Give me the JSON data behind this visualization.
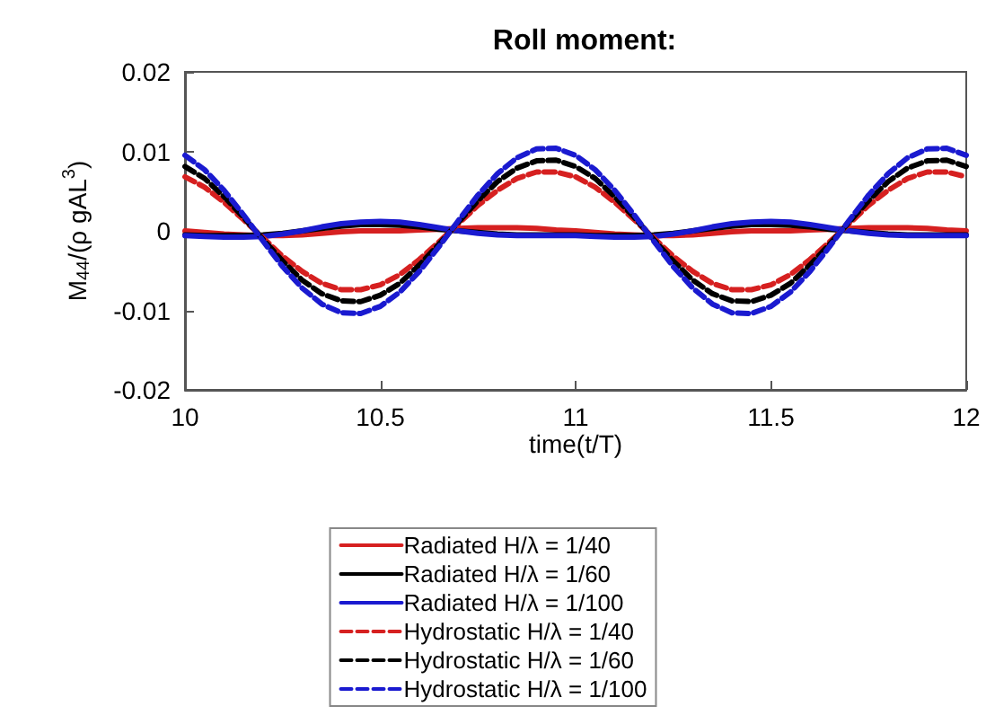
{
  "chart_data": {
    "type": "line",
    "title": "Roll moment:",
    "xlabel": "time(t/T)",
    "ylabel": "M$_{44}$/(ρ gAL$^{3}$)",
    "x": [
      10,
      10.05,
      10.1,
      10.15,
      10.2,
      10.25,
      10.3,
      10.35,
      10.4,
      10.45,
      10.5,
      10.55,
      10.6,
      10.65,
      10.7,
      10.75,
      10.8,
      10.85,
      10.9,
      10.95,
      11,
      11.05,
      11.1,
      11.15,
      11.2,
      11.25,
      11.3,
      11.35,
      11.4,
      11.45,
      11.5,
      11.55,
      11.6,
      11.65,
      11.7,
      11.75,
      11.8,
      11.85,
      11.9,
      11.95,
      12
    ],
    "xlim": [
      10,
      12
    ],
    "xticks": [
      10,
      10.5,
      11,
      11.5,
      12
    ],
    "ylim": [
      -0.02,
      0.02
    ],
    "yticks": [
      -0.02,
      -0.01,
      0,
      0.01,
      0.02
    ],
    "grid": false,
    "legend": "bottom",
    "marker": "none",
    "series": [
      {
        "name": "Radiated H/λ = 1/40",
        "color": "#d62020",
        "line_style": "solid",
        "values": [
          0,
          -0.0002,
          -0.0004,
          -0.0005,
          -0.0006,
          -0.0006,
          -0.0005,
          -0.0003,
          -0.0001,
          0,
          0,
          0,
          0.0001,
          0.0002,
          0.0003,
          0.0004,
          0.0004,
          0.0004,
          0.0003,
          0.0001,
          0,
          -0.0002,
          -0.0004,
          -0.0005,
          -0.0006,
          -0.0006,
          -0.0005,
          -0.0003,
          -0.0001,
          0,
          0,
          0,
          0.0001,
          0.0002,
          0.0003,
          0.0004,
          0.0004,
          0.0004,
          0.0003,
          0.0001,
          0
        ]
      },
      {
        "name": "Radiated H/λ = 1/60",
        "color": "#000000",
        "line_style": "solid",
        "values": [
          -0.0005,
          -0.0006,
          -0.0006,
          -0.0006,
          -0.0005,
          -0.0003,
          0,
          0.0003,
          0.0006,
          0.0008,
          0.0008,
          0.0007,
          0.0005,
          0.0002,
          0,
          -0.0002,
          -0.0004,
          -0.0005,
          -0.0005,
          -0.0005,
          -0.0005,
          -0.0006,
          -0.0006,
          -0.0006,
          -0.0005,
          -0.0003,
          0,
          0.0003,
          0.0006,
          0.0008,
          0.0008,
          0.0007,
          0.0005,
          0.0002,
          0,
          -0.0002,
          -0.0004,
          -0.0005,
          -0.0005,
          -0.0005,
          -0.0005
        ]
      },
      {
        "name": "Radiated H/λ = 1/100",
        "color": "#1a1ad0",
        "line_style": "solid",
        "values": [
          -0.0006,
          -0.0007,
          -0.0008,
          -0.0008,
          -0.0007,
          -0.0004,
          0,
          0.0005,
          0.0009,
          0.0011,
          0.0012,
          0.0011,
          0.0008,
          0.0004,
          0,
          -0.0003,
          -0.0005,
          -0.0006,
          -0.0006,
          -0.0006,
          -0.0006,
          -0.0007,
          -0.0008,
          -0.0008,
          -0.0007,
          -0.0004,
          0,
          0.0005,
          0.0009,
          0.0011,
          0.0012,
          0.0011,
          0.0008,
          0.0004,
          0,
          -0.0003,
          -0.0005,
          -0.0006,
          -0.0006,
          -0.0006,
          -0.0006
        ]
      },
      {
        "name": "Hydrostatic H/λ = 1/40",
        "color": "#d62020",
        "line_style": "dashed",
        "values": [
          0.0068,
          0.0055,
          0.0036,
          0.0014,
          -0.0009,
          -0.0032,
          -0.0051,
          -0.0066,
          -0.0074,
          -0.0074,
          -0.0068,
          -0.0055,
          -0.0036,
          -0.0014,
          0.0009,
          0.0032,
          0.0051,
          0.0066,
          0.0074,
          0.0074,
          0.0068,
          0.0055,
          0.0036,
          0.0014,
          -0.0009,
          -0.0032,
          -0.0051,
          -0.0066,
          -0.0074,
          -0.0074,
          -0.0068,
          -0.0055,
          -0.0036,
          -0.0014,
          0.0009,
          0.0032,
          0.0051,
          0.0066,
          0.0074,
          0.0074,
          0.0068
        ]
      },
      {
        "name": "Hydrostatic H/λ = 1/60",
        "color": "#000000",
        "line_style": "dashed",
        "values": [
          0.0081,
          0.0066,
          0.0043,
          0.0017,
          -0.0011,
          -0.0038,
          -0.0062,
          -0.0079,
          -0.0088,
          -0.0089,
          -0.0081,
          -0.0066,
          -0.0043,
          -0.0017,
          0.0011,
          0.0038,
          0.0062,
          0.0079,
          0.0088,
          0.0089,
          0.0081,
          0.0066,
          0.0043,
          0.0017,
          -0.0011,
          -0.0038,
          -0.0062,
          -0.0079,
          -0.0088,
          -0.0089,
          -0.0081,
          -0.0066,
          -0.0043,
          -0.0017,
          0.0011,
          0.0038,
          0.0062,
          0.0079,
          0.0088,
          0.0089,
          0.0081
        ]
      },
      {
        "name": "Hydrostatic H/λ = 1/100",
        "color": "#1a1ad0",
        "line_style": "dashed",
        "values": [
          0.0095,
          0.0077,
          0.0051,
          0.002,
          -0.0013,
          -0.0045,
          -0.0072,
          -0.0092,
          -0.0103,
          -0.0104,
          -0.0095,
          -0.0077,
          -0.0051,
          -0.002,
          0.0013,
          0.0045,
          0.0072,
          0.0092,
          0.0103,
          0.0104,
          0.0095,
          0.0077,
          0.0051,
          0.002,
          -0.0013,
          -0.0045,
          -0.0072,
          -0.0092,
          -0.0103,
          -0.0104,
          -0.0095,
          -0.0077,
          -0.0051,
          -0.002,
          0.0013,
          0.0045,
          0.0072,
          0.0092,
          0.0103,
          0.0104,
          0.0095
        ]
      }
    ]
  }
}
